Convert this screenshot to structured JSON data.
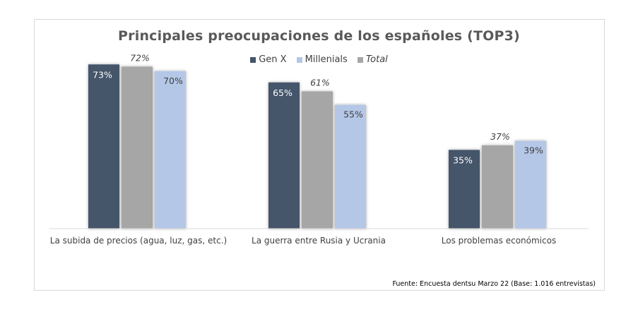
{
  "chart_data": {
    "type": "bar",
    "title": "Principales preocupaciones de los españoles (TOP3)",
    "categories": [
      "La subida de precios (agua, luz, gas, etc.)",
      "La guerra entre Rusia y Ucrania",
      "Los problemas económicos"
    ],
    "series": [
      {
        "name": "Gen X",
        "values": [
          73,
          65,
          35
        ],
        "labels": [
          "73%",
          "65%",
          "35%"
        ],
        "color": "#44546a"
      },
      {
        "name": "Total",
        "values": [
          72,
          61,
          37
        ],
        "labels": [
          "72%",
          "61%",
          "37%"
        ],
        "color": "#a6a6a6"
      },
      {
        "name": "Millenials",
        "values": [
          70,
          55,
          39
        ],
        "labels": [
          "70%",
          "55%",
          "39%"
        ],
        "color": "#b4c7e7"
      }
    ],
    "legend": [
      {
        "name": "Gen X",
        "color": "#44546a",
        "italic": false
      },
      {
        "name": "Millenials",
        "color": "#b4c7e7",
        "italic": false
      },
      {
        "name": "Total",
        "color": "#a6a6a6",
        "italic": true
      }
    ],
    "ylim": [
      0,
      80
    ],
    "grid": false,
    "legend_position": "top"
  },
  "source": "Fuente: Encuesta dentsu Marzo 22 (Base: 1.016 entrevistas)"
}
